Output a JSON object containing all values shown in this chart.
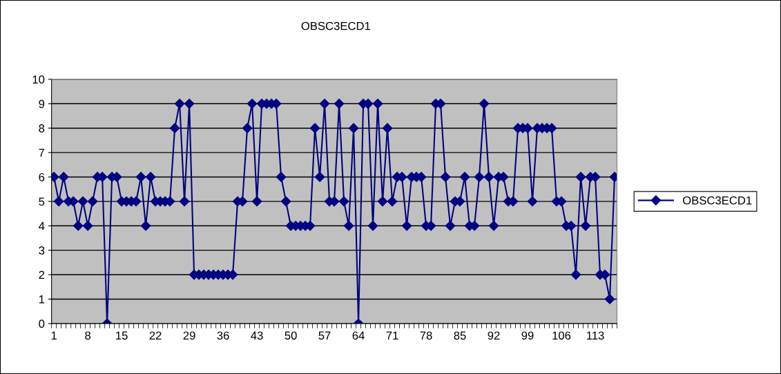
{
  "chart_data": {
    "type": "line",
    "title": "OBSC3ECD1",
    "categories": [
      "1",
      null,
      null,
      null,
      null,
      null,
      null,
      "8",
      null,
      null,
      null,
      null,
      null,
      null,
      "15",
      null,
      null,
      null,
      null,
      null,
      null,
      "22",
      null,
      null,
      null,
      null,
      null,
      null,
      "29",
      null,
      null,
      null,
      null,
      null,
      null,
      "36",
      null,
      null,
      null,
      null,
      null,
      null,
      "43",
      null,
      null,
      null,
      null,
      null,
      null,
      "50",
      null,
      null,
      null,
      null,
      null,
      null,
      "57",
      null,
      null,
      null,
      null,
      null,
      null,
      "64",
      null,
      null,
      null,
      null,
      null,
      null,
      "71",
      null,
      null,
      null,
      null,
      null,
      null,
      "78",
      null,
      null,
      null,
      null,
      null,
      null,
      "85",
      null,
      null,
      null,
      null,
      null,
      null,
      "92",
      null,
      null,
      null,
      null,
      null,
      null,
      "99",
      null,
      null,
      null,
      null,
      null,
      null,
      "106",
      null,
      null,
      null,
      null,
      null,
      null,
      "113",
      null,
      null,
      null,
      null
    ],
    "series": [
      {
        "name": "OBSC3ECD1",
        "color": "#000080",
        "values": [
          6,
          5,
          6,
          5,
          5,
          4,
          5,
          4,
          5,
          6,
          6,
          0,
          6,
          6,
          5,
          5,
          5,
          5,
          6,
          4,
          6,
          5,
          5,
          5,
          5,
          8,
          9,
          5,
          9,
          2,
          2,
          2,
          2,
          2,
          2,
          2,
          2,
          2,
          5,
          5,
          8,
          9,
          5,
          9,
          9,
          9,
          9,
          6,
          5,
          4,
          4,
          4,
          4,
          4,
          8,
          6,
          9,
          5,
          5,
          9,
          5,
          4,
          8,
          0,
          9,
          9,
          4,
          9,
          5,
          8,
          5,
          6,
          6,
          4,
          6,
          6,
          6,
          4,
          4,
          9,
          9,
          6,
          4,
          5,
          5,
          6,
          4,
          4,
          6,
          9,
          6,
          4,
          6,
          6,
          5,
          5,
          8,
          8,
          8,
          5,
          8,
          8,
          8,
          8,
          5,
          5,
          4,
          4,
          2,
          6,
          4,
          6,
          6,
          2,
          2,
          1,
          6
        ]
      }
    ],
    "ylim": [
      0,
      10
    ],
    "yticks": [
      0,
      1,
      2,
      3,
      4,
      5,
      6,
      7,
      8,
      9,
      10
    ],
    "grid": "y",
    "legend": "right",
    "marker": "diamond",
    "line_style": "solid"
  }
}
